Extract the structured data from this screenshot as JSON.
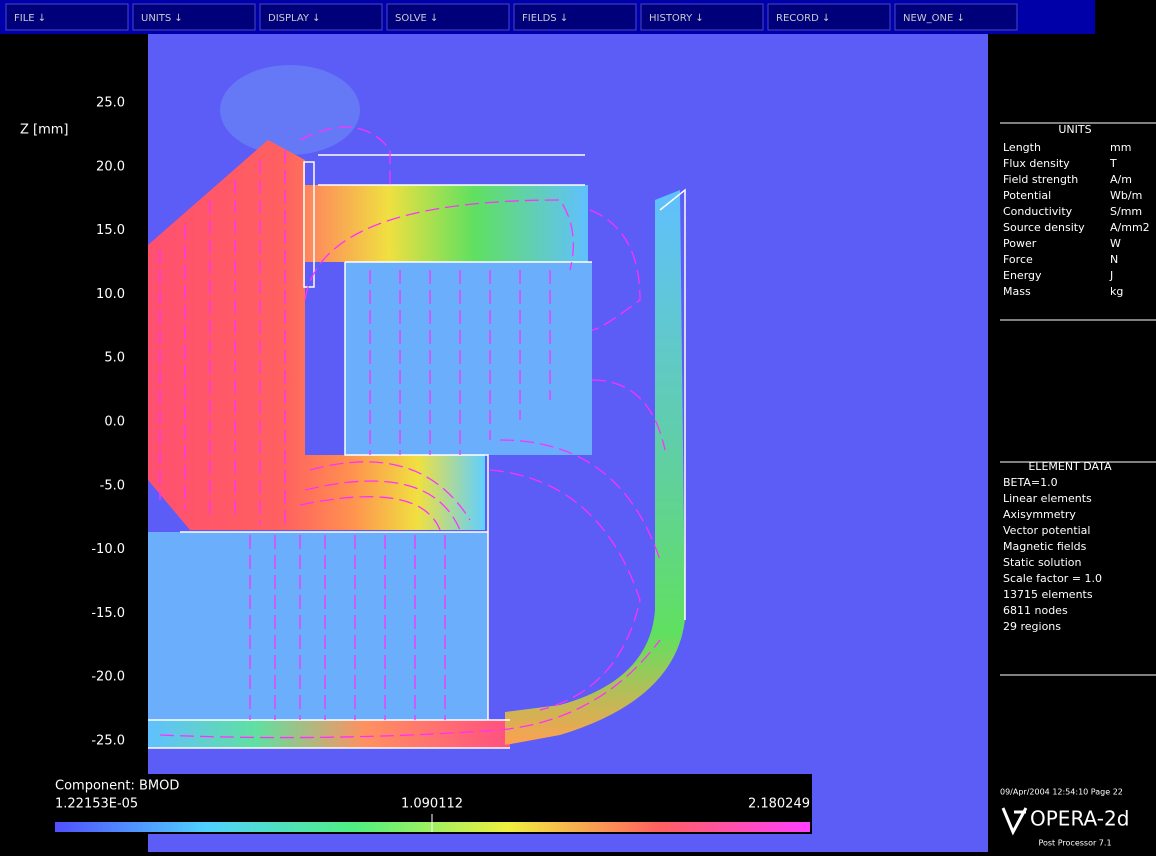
{
  "toolbar": {
    "buttons": [
      "FILE ↓",
      "UNITS ↓",
      "DISPLAY ↓",
      "SOLVE ↓",
      "FIELDS ↓",
      "HISTORY ↓",
      "RECORD ↓",
      "NEW_ONE ↓"
    ]
  },
  "plot": {
    "axis_label": "Z [mm]",
    "yticks": [
      "25.0",
      "20.0",
      "15.0",
      "10.0",
      "5.0",
      "0.0",
      "-5.0",
      "-10.0",
      "-15.0",
      "-20.0",
      "-25.0"
    ]
  },
  "units": {
    "title": "UNITS",
    "rows": [
      [
        "Length",
        "mm"
      ],
      [
        "Flux density",
        "T"
      ],
      [
        "Field strength",
        "A/m"
      ],
      [
        "Potential",
        "Wb/m"
      ],
      [
        "Conductivity",
        "S/mm"
      ],
      [
        "Source density",
        "A/mm2"
      ],
      [
        "Power",
        "W"
      ],
      [
        "Force",
        "N"
      ],
      [
        "Energy",
        "J"
      ],
      [
        "Mass",
        "kg"
      ]
    ]
  },
  "element_data": {
    "title": "ELEMENT DATA",
    "lines": [
      "BETA=1.0",
      "Linear elements",
      "Axisymmetry",
      "Vector potential",
      "Magnetic fields",
      "Static solution",
      "Scale factor = 1.0",
      "13715 elements",
      "6811 nodes",
      "29 regions"
    ]
  },
  "colorbar": {
    "title": "Component: BMOD",
    "min_label": "1.22153E-05",
    "mid_label": "1.090112",
    "max_label": "2.180249"
  },
  "footer": {
    "timestamp": "09/Apr/2004 12:54:10 Page 22",
    "product": "OPERA-2d",
    "version": "Post Processor 7.1"
  }
}
